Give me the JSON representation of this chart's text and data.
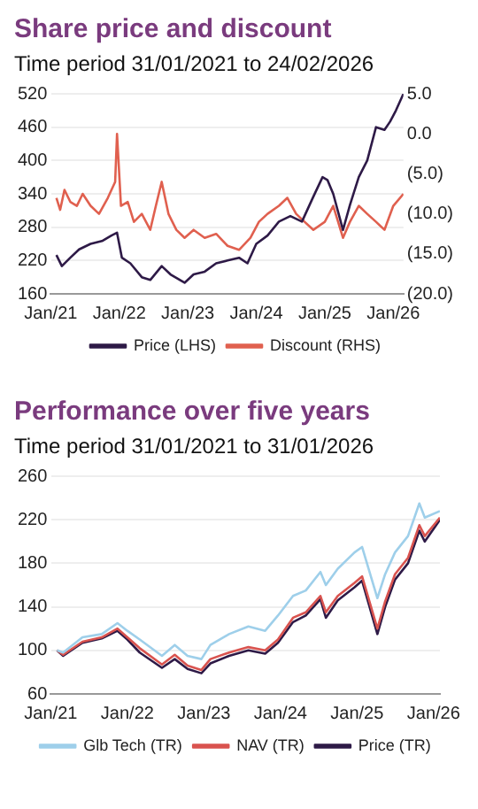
{
  "chart_data": [
    {
      "type": "line",
      "title": "Share price and discount",
      "subtitle": "Time period 31/01/2021 to 24/02/2026",
      "xlim": [
        "2021-01-01",
        "2026-02-24"
      ],
      "xticks": [
        {
          "value": "2021-01-01",
          "label": "Jan/21"
        },
        {
          "value": "2022-01-01",
          "label": "Jan/22"
        },
        {
          "value": "2023-01-01",
          "label": "Jan/23"
        },
        {
          "value": "2024-01-01",
          "label": "Jan/24"
        },
        {
          "value": "2025-01-01",
          "label": "Jan/25"
        },
        {
          "value": "2026-01-01",
          "label": "Jan/26"
        }
      ],
      "ylim": [
        160,
        520
      ],
      "yticks": [
        160,
        220,
        280,
        340,
        400,
        460,
        520
      ],
      "y2lim": [
        -20,
        5
      ],
      "y2ticks": [
        {
          "value": -20,
          "label": "(20.0)"
        },
        {
          "value": -15,
          "label": "(15.0)"
        },
        {
          "value": -10,
          "label": "(10.0)"
        },
        {
          "value": -5,
          "label": "(5.0)"
        },
        {
          "value": 0,
          "label": "0.0"
        },
        {
          "value": 5,
          "label": "5.0"
        }
      ],
      "grid": "y",
      "legend": "bottom",
      "marker": "none",
      "line_style": "solid",
      "series": [
        {
          "name": "Price (LHS)",
          "color": "#2e1a47",
          "x": [
            "2021-01-31",
            "2021-03-01",
            "2021-04-15",
            "2021-06-01",
            "2021-08-01",
            "2021-10-01",
            "2021-11-20",
            "2021-12-20",
            "2022-01-15",
            "2022-03-01",
            "2022-05-01",
            "2022-06-15",
            "2022-08-15",
            "2022-10-01",
            "2022-12-15",
            "2023-02-01",
            "2023-04-01",
            "2023-06-01",
            "2023-08-01",
            "2023-10-01",
            "2023-11-15",
            "2024-01-01",
            "2024-03-01",
            "2024-05-01",
            "2024-07-01",
            "2024-09-01",
            "2024-11-01",
            "2024-12-20",
            "2025-01-15",
            "2025-02-15",
            "2025-04-08",
            "2025-05-15",
            "2025-07-01",
            "2025-08-15",
            "2025-10-01",
            "2025-11-15",
            "2025-12-15",
            "2026-01-15",
            "2026-02-24"
          ],
          "values": [
            230,
            210,
            225,
            240,
            250,
            255,
            265,
            270,
            225,
            215,
            190,
            185,
            210,
            195,
            180,
            195,
            200,
            215,
            220,
            225,
            215,
            250,
            265,
            290,
            300,
            290,
            335,
            370,
            365,
            340,
            275,
            320,
            370,
            400,
            460,
            455,
            470,
            490,
            520
          ]
        },
        {
          "name": "Discount (RHS)",
          "color": "#e0604f",
          "axis": "y2",
          "x": [
            "2021-01-31",
            "2021-02-20",
            "2021-03-15",
            "2021-04-15",
            "2021-05-20",
            "2021-06-20",
            "2021-08-01",
            "2021-09-15",
            "2021-11-01",
            "2021-12-10",
            "2021-12-20",
            "2022-01-10",
            "2022-02-15",
            "2022-03-20",
            "2022-05-01",
            "2022-06-15",
            "2022-07-15",
            "2022-08-15",
            "2022-09-20",
            "2022-11-01",
            "2022-12-15",
            "2023-02-01",
            "2023-04-01",
            "2023-06-01",
            "2023-08-01",
            "2023-10-01",
            "2023-12-01",
            "2024-01-15",
            "2024-03-01",
            "2024-05-01",
            "2024-06-15",
            "2024-08-01",
            "2024-09-15",
            "2024-11-01",
            "2025-01-01",
            "2025-02-15",
            "2025-04-08",
            "2025-05-15",
            "2025-07-01",
            "2025-08-15",
            "2025-10-01",
            "2025-11-15",
            "2026-01-01",
            "2026-02-24"
          ],
          "values": [
            -8,
            -9.5,
            -7,
            -8.5,
            -9,
            -7.5,
            -9,
            -10,
            -8,
            -6,
            0,
            -9,
            -8.5,
            -11,
            -10,
            -12,
            -9,
            -6,
            -10,
            -12,
            -13,
            -12,
            -13,
            -12.5,
            -14,
            -14.5,
            -13,
            -11,
            -10,
            -9,
            -8,
            -10,
            -11,
            -12,
            -11,
            -9,
            -13,
            -11,
            -9,
            -10,
            -11,
            -12,
            -9,
            -7.5
          ]
        }
      ]
    },
    {
      "type": "line",
      "title": "Performance over five years",
      "subtitle": "Time period 31/01/2021 to 31/01/2026",
      "xlim": [
        "2021-01-01",
        "2026-01-31"
      ],
      "xticks": [
        {
          "value": "2021-01-01",
          "label": "Jan/21"
        },
        {
          "value": "2022-01-01",
          "label": "Jan/22"
        },
        {
          "value": "2023-01-01",
          "label": "Jan/23"
        },
        {
          "value": "2024-01-01",
          "label": "Jan/24"
        },
        {
          "value": "2025-01-01",
          "label": "Jan/25"
        },
        {
          "value": "2026-01-01",
          "label": "Jan/26"
        }
      ],
      "ylim": [
        60,
        260
      ],
      "yticks": [
        60,
        100,
        140,
        180,
        220,
        260
      ],
      "grid": "y",
      "legend": "bottom",
      "marker": "none",
      "line_style": "solid",
      "series": [
        {
          "name": "Glb Tech (TR)",
          "color": "#9ecfea",
          "x": [
            "2021-01-31",
            "2021-03-01",
            "2021-06-01",
            "2021-09-01",
            "2021-11-15",
            "2022-01-01",
            "2022-03-01",
            "2022-06-15",
            "2022-08-15",
            "2022-10-15",
            "2022-12-20",
            "2023-02-01",
            "2023-05-01",
            "2023-08-01",
            "2023-10-20",
            "2023-12-20",
            "2024-03-01",
            "2024-05-01",
            "2024-07-10",
            "2024-08-05",
            "2024-10-01",
            "2024-12-20",
            "2025-01-25",
            "2025-04-08",
            "2025-05-15",
            "2025-07-01",
            "2025-09-01",
            "2025-10-25",
            "2025-11-20",
            "2026-01-31"
          ],
          "values": [
            100,
            98,
            112,
            115,
            125,
            118,
            110,
            95,
            105,
            95,
            92,
            105,
            115,
            122,
            118,
            132,
            150,
            155,
            172,
            160,
            175,
            190,
            195,
            148,
            170,
            190,
            205,
            235,
            222,
            228
          ]
        },
        {
          "name": "NAV (TR)",
          "color": "#d9534f",
          "x": [
            "2021-01-31",
            "2021-03-01",
            "2021-06-01",
            "2021-09-01",
            "2021-11-15",
            "2022-01-01",
            "2022-03-01",
            "2022-06-15",
            "2022-08-15",
            "2022-10-15",
            "2022-12-20",
            "2023-02-01",
            "2023-05-01",
            "2023-08-01",
            "2023-10-20",
            "2023-12-20",
            "2024-03-01",
            "2024-05-01",
            "2024-07-10",
            "2024-08-05",
            "2024-10-01",
            "2024-12-20",
            "2025-01-25",
            "2025-04-08",
            "2025-05-15",
            "2025-07-01",
            "2025-09-01",
            "2025-10-25",
            "2025-11-20",
            "2026-01-31"
          ],
          "values": [
            100,
            96,
            108,
            112,
            120,
            112,
            102,
            87,
            96,
            86,
            82,
            92,
            98,
            103,
            100,
            110,
            130,
            135,
            150,
            135,
            150,
            162,
            168,
            120,
            145,
            170,
            185,
            215,
            205,
            222
          ]
        },
        {
          "name": "Price (TR)",
          "color": "#2e1a47",
          "x": [
            "2021-01-31",
            "2021-03-01",
            "2021-06-01",
            "2021-09-01",
            "2021-11-15",
            "2022-01-01",
            "2022-03-01",
            "2022-06-15",
            "2022-08-15",
            "2022-10-15",
            "2022-12-20",
            "2023-02-01",
            "2023-05-01",
            "2023-08-01",
            "2023-10-20",
            "2023-12-20",
            "2024-03-01",
            "2024-05-01",
            "2024-07-10",
            "2024-08-05",
            "2024-10-01",
            "2024-12-20",
            "2025-01-25",
            "2025-04-08",
            "2025-05-15",
            "2025-07-01",
            "2025-09-01",
            "2025-10-25",
            "2025-11-20",
            "2026-01-31"
          ],
          "values": [
            100,
            95,
            107,
            111,
            118,
            110,
            98,
            84,
            92,
            83,
            79,
            88,
            95,
            100,
            97,
            107,
            126,
            132,
            147,
            130,
            146,
            158,
            164,
            115,
            140,
            165,
            180,
            210,
            200,
            220
          ]
        }
      ]
    }
  ]
}
